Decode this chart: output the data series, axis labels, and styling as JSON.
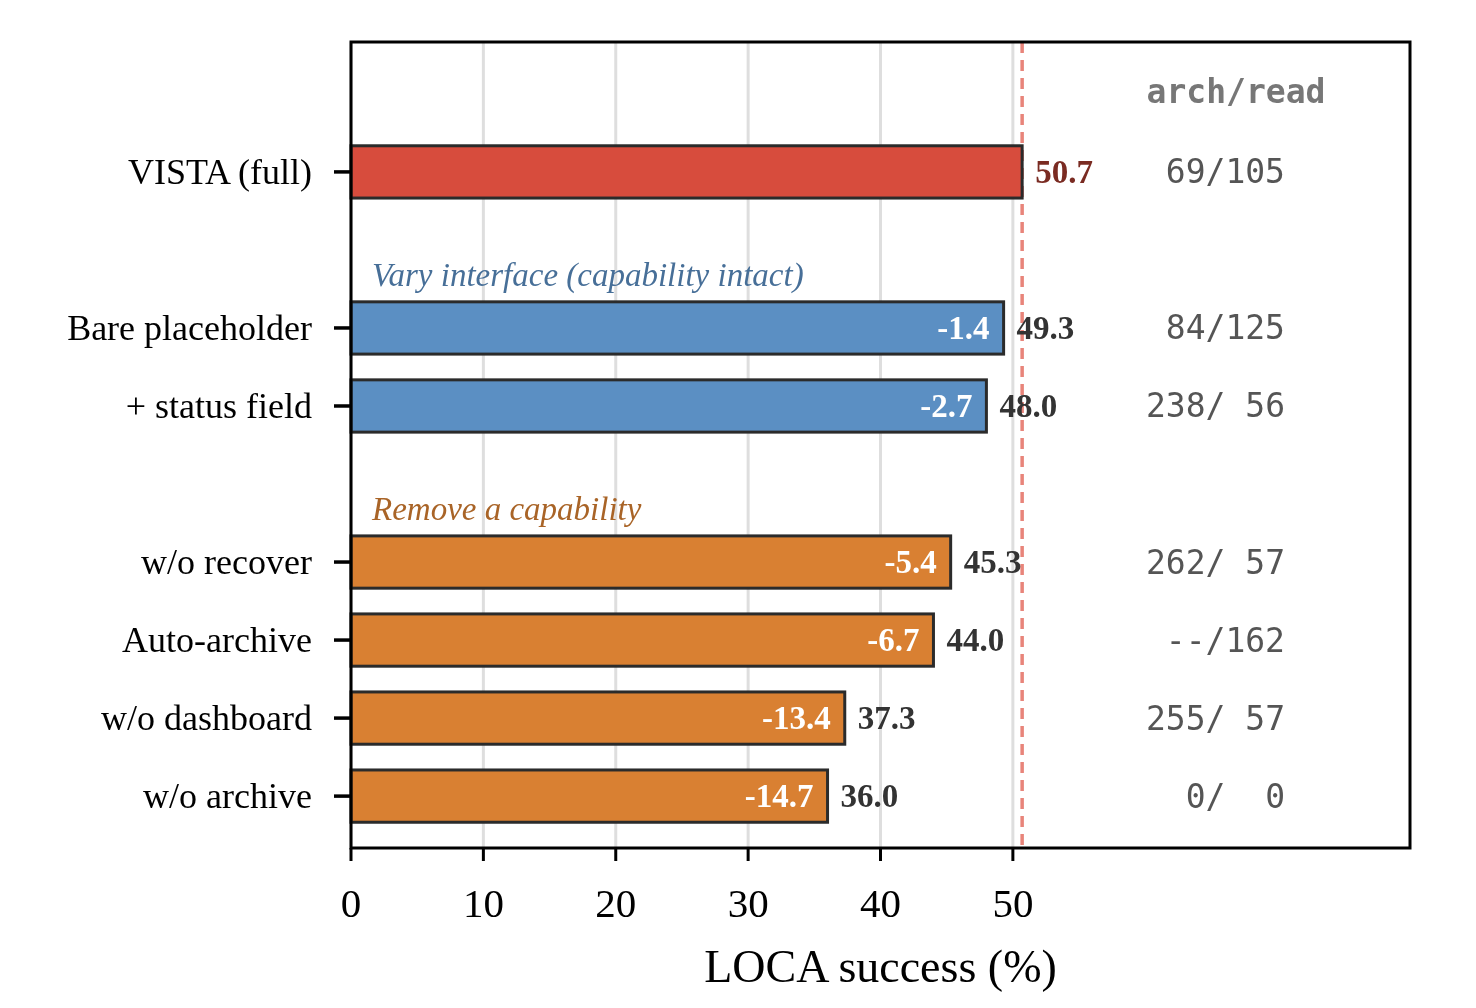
{
  "chart_data": {
    "type": "bar",
    "orientation": "horizontal",
    "categories": [
      null,
      "VISTA (full)",
      null,
      "Bare placeholder",
      "+ status field",
      null,
      "w/o recover",
      "Auto-archive",
      "w/o dashboard",
      "w/o archive"
    ],
    "values": [
      null,
      50.7,
      null,
      49.3,
      48.0,
      null,
      45.3,
      44.0,
      37.3,
      36.0
    ],
    "colors": [
      null,
      "#d74c3d",
      null,
      "#5b8fc3",
      "#5b8fc3",
      null,
      "#d98032",
      "#d98032",
      "#d98032",
      "#d98032"
    ],
    "value_labels": [
      null,
      "50.7",
      null,
      "49.3",
      "48.0",
      null,
      "45.3",
      "44.0",
      "37.3",
      "36.0"
    ],
    "xlim": [
      0,
      80
    ],
    "xticks": [
      0,
      10,
      20,
      30,
      40,
      50
    ],
    "xlabel": "LOCA success (%)",
    "grid": "x",
    "ref_lines": [
      {
        "axis": "x",
        "value": 50.7,
        "color": "#e8847a",
        "line_style": "dashed"
      }
    ],
    "annotations": [
      "arch/read",
      "69/105",
      "Vary interface (capability intact)",
      "84/125",
      "238/ 56",
      "Remove a capability",
      "262/ 57",
      "--/162",
      "255/ 57",
      "0/  0",
      {
        "text": "-1.4",
        "x": 49.3,
        "y": "Bare placeholder"
      },
      {
        "text": "-2.7",
        "x": 48.0,
        "y": "+ status field"
      },
      {
        "text": "-5.4",
        "x": 45.3,
        "y": "w/o recover"
      },
      {
        "text": "-6.7",
        "x": 44.0,
        "y": "Auto-archive"
      },
      {
        "text": "-13.4",
        "x": 37.3,
        "y": "w/o dashboard"
      },
      {
        "text": "-14.7",
        "x": 36.0,
        "y": "w/o archive"
      }
    ]
  }
}
